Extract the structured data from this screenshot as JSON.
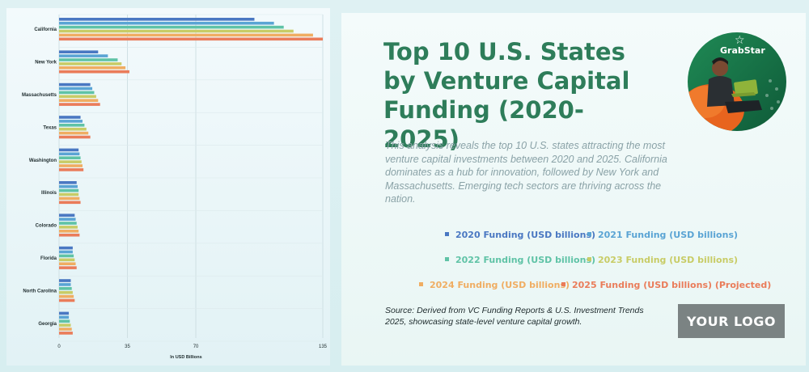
{
  "colors": {
    "2020": "#4a78c2",
    "2021": "#5aa4d4",
    "2022": "#5fc3a6",
    "2023": "#c8cc66",
    "2024": "#f0ad62",
    "2025": "#ea7c5a",
    "title": "#2e7d5a"
  },
  "chart_data": {
    "type": "bar",
    "orientation": "horizontal",
    "categories": [
      "California",
      "New York",
      "Massachusetts",
      "Texas",
      "Washington",
      "Illinois",
      "Colorado",
      "Florida",
      "North Carolina",
      "Georgia"
    ],
    "series": [
      {
        "name": "2020 Funding (USD billions)",
        "values": [
          100,
          20,
          16,
          11,
          10,
          9,
          8,
          7,
          6,
          5
        ]
      },
      {
        "name": "2021 Funding (USD billions)",
        "values": [
          110,
          25,
          17,
          12,
          10.5,
          9.5,
          8.5,
          7,
          6,
          5
        ]
      },
      {
        "name": "2022 Funding (USD billions)",
        "values": [
          115,
          30,
          18,
          13,
          11,
          10,
          9,
          7.5,
          6.5,
          5.5
        ]
      },
      {
        "name": "2023 Funding (USD billions)",
        "values": [
          120,
          32,
          19,
          14,
          11.5,
          10,
          9.5,
          8,
          7,
          6
        ]
      },
      {
        "name": "2024 Funding (USD billions)",
        "values": [
          130,
          34,
          20,
          15,
          12,
          10.5,
          10,
          8.5,
          7.5,
          6.5
        ]
      },
      {
        "name": "2025 Funding (USD billions) (Projected)",
        "values": [
          135,
          36,
          21,
          16,
          12.5,
          11,
          10.5,
          9,
          8,
          7
        ]
      }
    ],
    "xticks": [
      "0",
      "35",
      "70",
      "135"
    ],
    "xtick_values": [
      0,
      35,
      70,
      135
    ],
    "xlabel": "In USD Billions",
    "xlim": [
      0,
      135
    ],
    "grid": true
  },
  "title": "Top 10 U.S. States by Venture Capital Funding (2020-2025)",
  "description": "This analysis reveals the top 10 U.S. states attracting the most venture capital investments between 2020 and 2025. California dominates as a hub for innovation, followed by New York and Massachusetts. Emerging tech sectors are thriving across the nation.",
  "legend": [
    {
      "label": "2020 Funding (USD billions)",
      "color": "#4a78c2"
    },
    {
      "label": "2021 Funding (USD billions)",
      "color": "#5aa4d4"
    },
    {
      "label": "2022 Funding (USD billions)",
      "color": "#5fc3a6"
    },
    {
      "label": "2023 Funding (USD billions)",
      "color": "#c8cc66"
    },
    {
      "label": "2024 Funding (USD billions)",
      "color": "#f0ad62"
    },
    {
      "label": "2025 Funding (USD billions) (Projected)",
      "color": "#ea7c5a"
    }
  ],
  "source": "Source: Derived from VC Funding Reports & U.S. Investment Trends 2025, showcasing state-level venture capital growth.",
  "logo_text": "YOUR LOGO",
  "photo": {
    "brand": "GrabStar",
    "brand_icon": "star-icon"
  }
}
